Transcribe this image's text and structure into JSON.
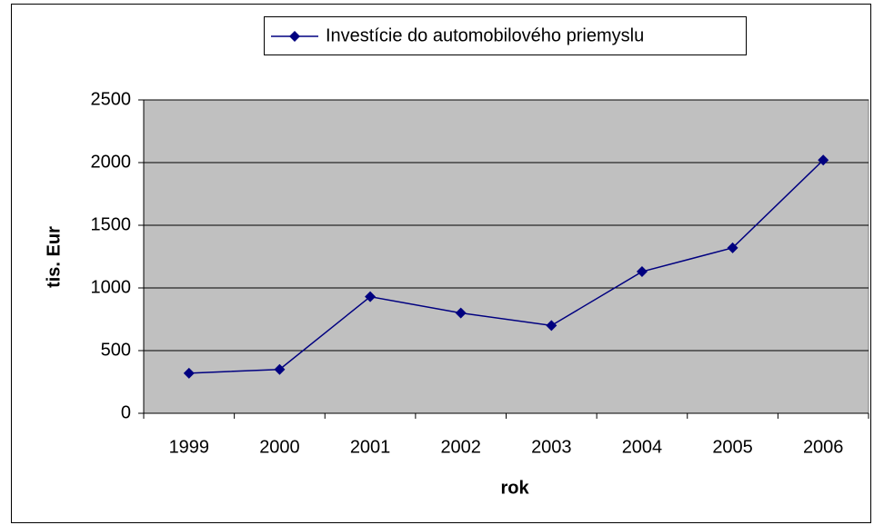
{
  "chart_data": {
    "type": "line",
    "categories": [
      "1999",
      "2000",
      "2001",
      "2002",
      "2003",
      "2004",
      "2005",
      "2006"
    ],
    "series": [
      {
        "name": "Investície do automobilového priemyslu",
        "color": "#000080",
        "values": [
          320,
          350,
          930,
          800,
          700,
          1130,
          1320,
          2020
        ]
      }
    ],
    "xlabel": "rok",
    "ylabel": "tis. Eur",
    "ylim": [
      0,
      2500
    ],
    "yticks": [
      0,
      500,
      1000,
      1500,
      2000,
      2500
    ],
    "grid": true,
    "legend": "top"
  }
}
